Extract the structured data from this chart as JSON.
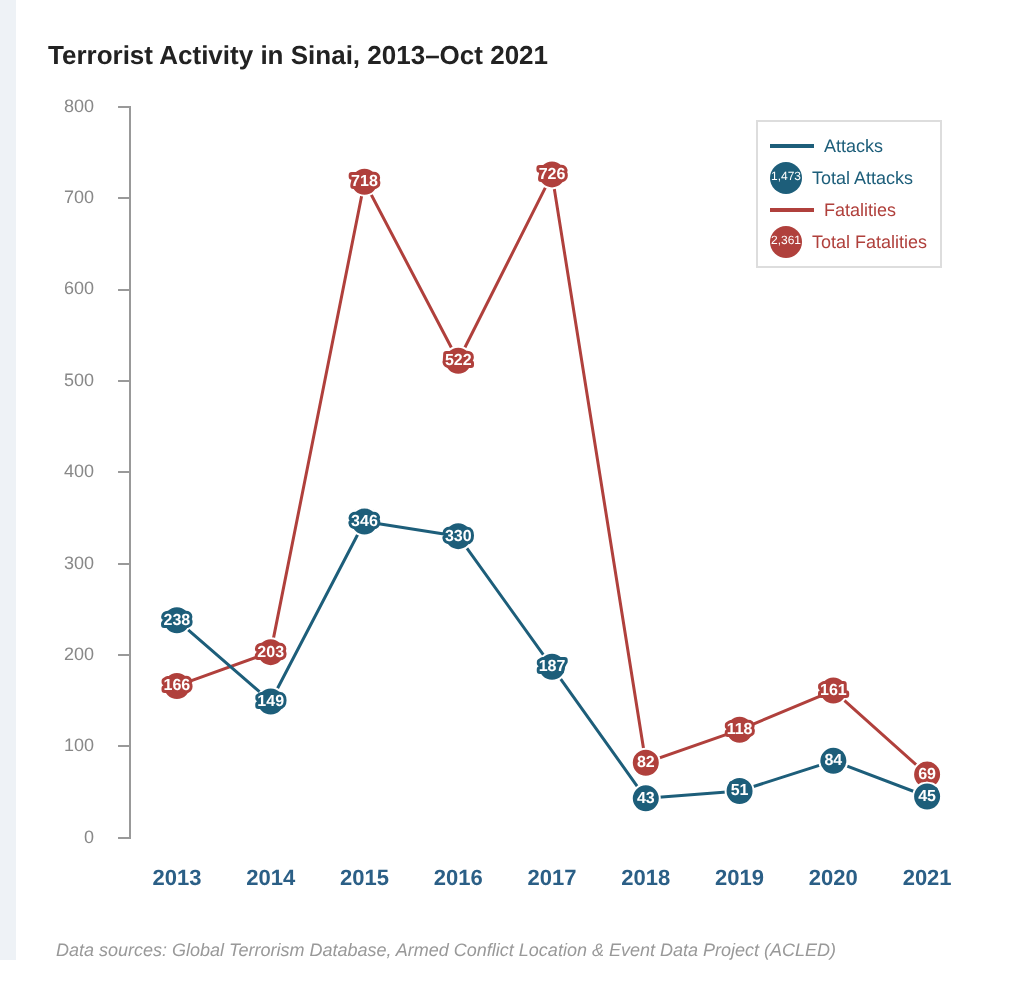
{
  "chart_data": {
    "type": "line",
    "title": "Terrorist Activity in Sinai, 2013–Oct 2021",
    "categories": [
      "2013",
      "2014",
      "2015",
      "2016",
      "2017",
      "2018",
      "2019",
      "2020",
      "2021"
    ],
    "series": [
      {
        "name": "Attacks",
        "color": "#1d5e7a",
        "values": [
          238,
          149,
          346,
          330,
          187,
          43,
          51,
          84,
          45
        ]
      },
      {
        "name": "Fatalities",
        "color": "#b0403c",
        "values": [
          166,
          203,
          718,
          522,
          726,
          82,
          118,
          161,
          69
        ]
      }
    ],
    "ylim": [
      0,
      800
    ],
    "yticks": [
      0,
      100,
      200,
      300,
      400,
      500,
      600,
      700,
      800
    ],
    "grid": false,
    "legend": "top right",
    "marker": "circle",
    "line_style": "solid",
    "data_labels": true,
    "annotations": [
      "1,473",
      "Total Attacks",
      "2,361",
      "Total Fatalities",
      "Data sources: Global Terrorism Database, Armed Conflict Location & Event Data Project (ACLED)"
    ]
  }
}
